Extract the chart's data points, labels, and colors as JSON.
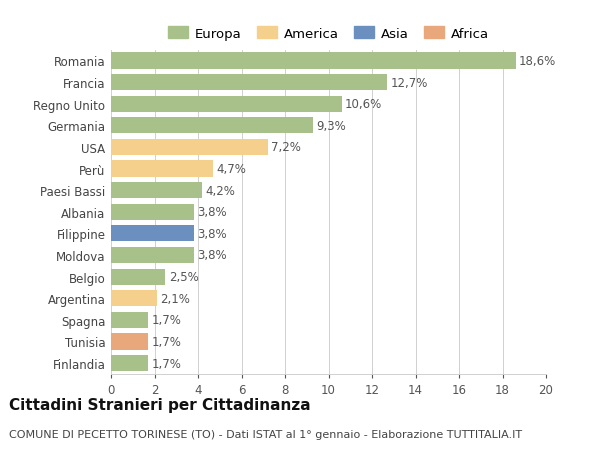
{
  "categories": [
    "Romania",
    "Francia",
    "Regno Unito",
    "Germania",
    "USA",
    "Perù",
    "Paesi Bassi",
    "Albania",
    "Filippine",
    "Moldova",
    "Belgio",
    "Argentina",
    "Spagna",
    "Tunisia",
    "Finlandia"
  ],
  "values": [
    18.6,
    12.7,
    10.6,
    9.3,
    7.2,
    4.7,
    4.2,
    3.8,
    3.8,
    3.8,
    2.5,
    2.1,
    1.7,
    1.7,
    1.7
  ],
  "labels": [
    "18,6%",
    "12,7%",
    "10,6%",
    "9,3%",
    "7,2%",
    "4,7%",
    "4,2%",
    "3,8%",
    "3,8%",
    "3,8%",
    "2,5%",
    "2,1%",
    "1,7%",
    "1,7%",
    "1,7%"
  ],
  "continents": [
    "Europa",
    "Europa",
    "Europa",
    "Europa",
    "America",
    "America",
    "Europa",
    "Europa",
    "Asia",
    "Europa",
    "Europa",
    "America",
    "Europa",
    "Africa",
    "Europa"
  ],
  "colors": {
    "Europa": "#a8c08a",
    "America": "#f5d08c",
    "Asia": "#6b8fbf",
    "Africa": "#e8a87c"
  },
  "legend_order": [
    "Europa",
    "America",
    "Asia",
    "Africa"
  ],
  "xlim": [
    0,
    20
  ],
  "xticks": [
    0,
    2,
    4,
    6,
    8,
    10,
    12,
    14,
    16,
    18,
    20
  ],
  "title": "Cittadini Stranieri per Cittadinanza",
  "subtitle": "COMUNE DI PECETTO TORINESE (TO) - Dati ISTAT al 1° gennaio - Elaborazione TUTTITALIA.IT",
  "bg_color": "#ffffff",
  "grid_color": "#d0d0d0",
  "bar_height": 0.75,
  "label_fontsize": 8.5,
  "tick_fontsize": 8.5,
  "title_fontsize": 11,
  "subtitle_fontsize": 8
}
